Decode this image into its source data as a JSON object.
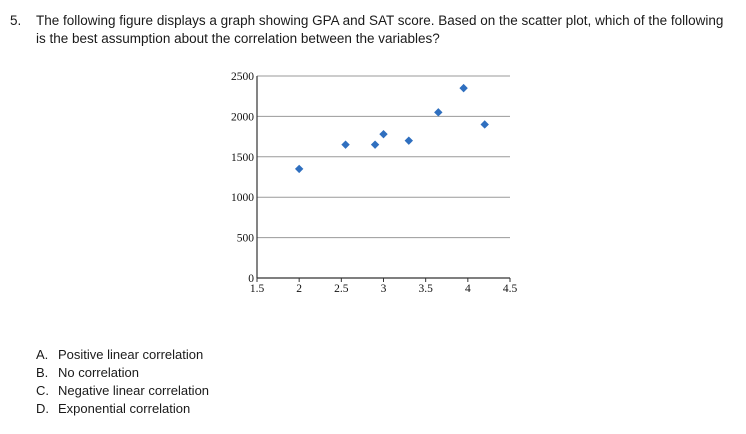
{
  "question": {
    "number": "5.",
    "text": "The following figure displays a graph showing GPA and SAT score. Based on the scatter plot, which of the following is the best assumption about the correlation between the variables?"
  },
  "chart_data": {
    "type": "scatter",
    "title": "",
    "xlabel": "",
    "ylabel": "",
    "xlim": [
      1.5,
      4.5
    ],
    "ylim": [
      0,
      2500
    ],
    "x_ticks": [
      "1.5",
      "2",
      "2.5",
      "3",
      "3.5",
      "4",
      "4.5"
    ],
    "y_ticks": [
      "0",
      "500",
      "1000",
      "1500",
      "2000",
      "2500"
    ],
    "grid": "horizontal",
    "point_color": "#2f6fbf",
    "points": [
      {
        "x": 2.0,
        "y": 1350
      },
      {
        "x": 2.55,
        "y": 1650
      },
      {
        "x": 2.9,
        "y": 1650
      },
      {
        "x": 3.0,
        "y": 1780
      },
      {
        "x": 3.3,
        "y": 1700
      },
      {
        "x": 3.65,
        "y": 2050
      },
      {
        "x": 3.95,
        "y": 2350
      },
      {
        "x": 4.2,
        "y": 1900
      }
    ]
  },
  "choices": [
    {
      "letter": "A.",
      "text": "Positive linear correlation"
    },
    {
      "letter": "B.",
      "text": "No correlation"
    },
    {
      "letter": "C.",
      "text": "Negative linear correlation"
    },
    {
      "letter": "D.",
      "text": "Exponential correlation"
    }
  ]
}
